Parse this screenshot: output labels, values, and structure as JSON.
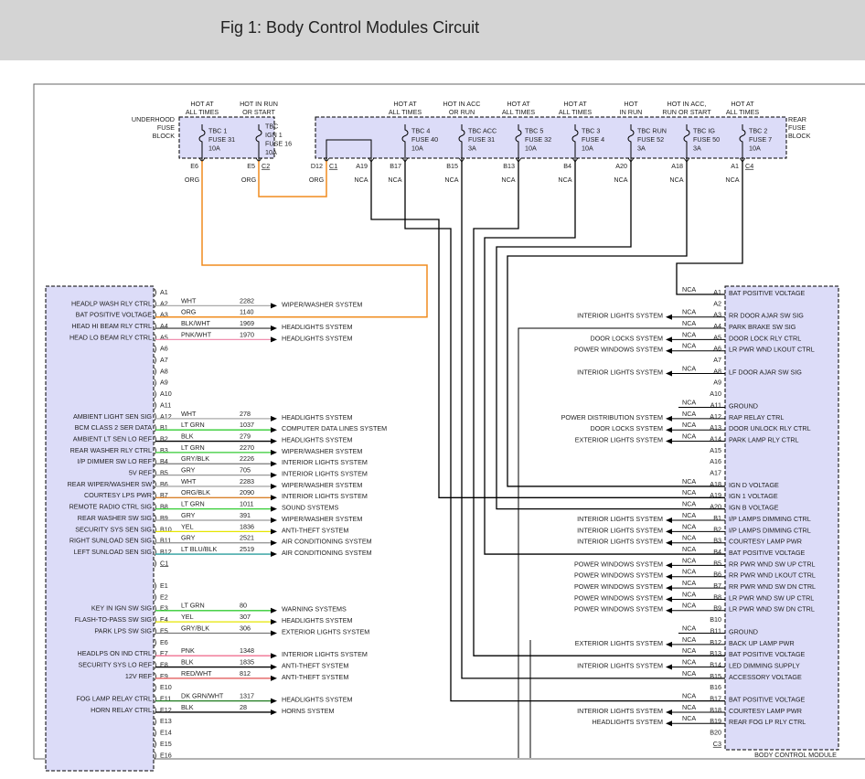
{
  "header": {
    "title": "Fig 1: Body Control Modules Circuit"
  },
  "underhood_fuse_block": {
    "label": [
      "UNDERHOOD",
      "FUSE",
      "BLOCK"
    ],
    "fuses": [
      {
        "heading": [
          "HOT AT",
          "ALL TIMES"
        ],
        "label": [
          "TBC 1",
          "FUSE 31",
          "10A"
        ],
        "pins": [
          "E6"
        ],
        "wire": "ORG"
      },
      {
        "heading": [
          "HOT IN RUN",
          "OR START"
        ],
        "label": [
          "TBC",
          "IGN 1",
          "FUSE 16",
          "10A"
        ],
        "pins": [
          "E5",
          "C2"
        ],
        "wire": "ORG"
      }
    ]
  },
  "rear_fuse_block": {
    "label": [
      "REAR",
      "FUSE",
      "BLOCK"
    ],
    "fuses": [
      {
        "pins": [
          "D12",
          "C1"
        ],
        "wire": "ORG"
      },
      {
        "pins": [
          "A19"
        ],
        "wire": "NCA"
      },
      {
        "heading": [
          "HOT AT",
          "ALL TIMES"
        ],
        "label": [
          "TBC 4",
          "FUSE 40",
          "10A"
        ],
        "pins": [
          "B17"
        ],
        "wire": "NCA"
      },
      {
        "heading": [
          "HOT IN ACC",
          "OR RUN"
        ],
        "label": [
          "TBC ACC",
          "FUSE 31",
          "3A"
        ],
        "pins": [
          "B15"
        ],
        "wire": "NCA"
      },
      {
        "heading": [
          "HOT AT",
          "ALL TIMES"
        ],
        "label": [
          "TBC 5",
          "FUSE 32",
          "10A"
        ],
        "pins": [
          "B13"
        ],
        "wire": "NCA"
      },
      {
        "heading": [
          "HOT AT",
          "ALL TIMES"
        ],
        "label": [
          "TBC 3",
          "FUSE 4",
          "10A"
        ],
        "pins": [
          "B4"
        ],
        "wire": "NCA"
      },
      {
        "heading": [
          "HOT",
          "IN RUN"
        ],
        "label": [
          "TBC RUN",
          "FUSE 52",
          "3A"
        ],
        "pins": [
          "A20"
        ],
        "wire": "NCA"
      },
      {
        "heading": [
          "HOT IN ACC,",
          "RUN OR START"
        ],
        "label": [
          "TBC IG",
          "FUSE 50",
          "3A"
        ],
        "pins": [
          "A18"
        ],
        "wire": "NCA"
      },
      {
        "heading": [
          "HOT AT",
          "ALL TIMES"
        ],
        "label": [
          "TBC 2",
          "FUSE 7",
          "10A"
        ],
        "pins": [
          "A1",
          "C4"
        ],
        "wire": "NCA"
      }
    ]
  },
  "left_module": {
    "rows": [
      {
        "pin": "A1"
      },
      {
        "pin": "A2",
        "function": "HEADLP WASH RLY CTRL",
        "wire": "WHT",
        "circuit": "2282",
        "destination": "WIPER/WASHER SYSTEM",
        "color": "#aaaaaa"
      },
      {
        "pin": "A3",
        "function": "BAT POSITIVE VOLTAGE",
        "wire": "ORG",
        "circuit": "1140",
        "color": "#f08c1e"
      },
      {
        "pin": "A4",
        "function": "HEAD HI BEAM RLY CTRL",
        "wire": "BLK/WHT",
        "circuit": "1969",
        "destination": "HEADLIGHTS SYSTEM",
        "color": "#555555"
      },
      {
        "pin": "A5",
        "function": "HEAD LO BEAM RLY CTRL",
        "wire": "PNK/WHT",
        "circuit": "1970",
        "destination": "HEADLIGHTS SYSTEM",
        "color": "#f090b0"
      },
      {
        "pin": "A6"
      },
      {
        "pin": "A7"
      },
      {
        "pin": "A8"
      },
      {
        "pin": "A9"
      },
      {
        "pin": "A10"
      },
      {
        "pin": "A11"
      },
      {
        "pin": "A12",
        "function": "AMBIENT LIGHT SEN SIG",
        "wire": "WHT",
        "circuit": "278",
        "destination": "HEADLIGHTS SYSTEM",
        "color": "#aaaaaa"
      },
      {
        "pin": "B1",
        "function": "BCM CLASS 2 SER DATA",
        "wire": "LT GRN",
        "circuit": "1037",
        "destination": "COMPUTER DATA LINES SYSTEM",
        "color": "#33cc33"
      },
      {
        "pin": "B2",
        "function": "AMBIENT LT SEN LO REF",
        "wire": "BLK",
        "circuit": "279",
        "destination": "HEADLIGHTS SYSTEM",
        "color": "#000000"
      },
      {
        "pin": "B3",
        "function": "REAR WASHER RLY CTRL",
        "wire": "LT GRN",
        "circuit": "2270",
        "destination": "WIPER/WASHER SYSTEM",
        "color": "#33cc33"
      },
      {
        "pin": "B4",
        "function": "I/P DIMMER SW LO REF",
        "wire": "GRY/BLK",
        "circuit": "2226",
        "destination": "INTERIOR LIGHTS SYSTEM",
        "color": "#777777"
      },
      {
        "pin": "B5",
        "function": "5V REF",
        "wire": "GRY",
        "circuit": "705",
        "destination": "INTERIOR LIGHTS SYSTEM",
        "color": "#999999"
      },
      {
        "pin": "B6",
        "function": "REAR WIPER/WASHER SW",
        "wire": "WHT",
        "circuit": "2283",
        "destination": "WIPER/WASHER SYSTEM",
        "color": "#aaaaaa"
      },
      {
        "pin": "B7",
        "function": "COURTESY LPS PWR",
        "wire": "ORG/BLK",
        "circuit": "2090",
        "destination": "INTERIOR LIGHTS SYSTEM",
        "color": "#d9822b"
      },
      {
        "pin": "B8",
        "function": "REMOTE RADIO CTRL SIG",
        "wire": "LT GRN",
        "circuit": "1011",
        "destination": "SOUND SYSTEMS",
        "color": "#33cc33"
      },
      {
        "pin": "B9",
        "function": "REAR WASHER SW SIG",
        "wire": "GRY",
        "circuit": "391",
        "destination": "WIPER/WASHER SYSTEM",
        "color": "#999999"
      },
      {
        "pin": "B10",
        "function": "SECURITY SYS SEN SIG",
        "wire": "YEL",
        "circuit": "1836",
        "destination": "ANTI-THEFT SYSTEM",
        "color": "#e6e600"
      },
      {
        "pin": "B11",
        "function": "RIGHT SUNLOAD SEN SIG",
        "wire": "GRY",
        "circuit": "2521",
        "destination": "AIR CONDITIONING SYSTEM",
        "color": "#999999"
      },
      {
        "pin": "B12",
        "function": "LEFT SUNLOAD SEN SIG",
        "wire": "LT BLU/BLK",
        "circuit": "2519",
        "destination": "AIR CONDITIONING SYSTEM",
        "color": "#2a9d9d"
      },
      {
        "pin": "C1"
      },
      {
        "pin": "E1"
      },
      {
        "pin": "E2"
      },
      {
        "pin": "E3",
        "function": "KEY IN IGN SW SIG",
        "wire": "LT GRN",
        "circuit": "80",
        "destination": "WARNING SYSTEMS",
        "color": "#33cc33"
      },
      {
        "pin": "E4",
        "function": "FLASH-TO-PASS SW SIG",
        "wire": "YEL",
        "circuit": "307",
        "destination": "HEADLIGHTS SYSTEM",
        "color": "#e6e600"
      },
      {
        "pin": "E5",
        "function": "PARK LPS SW SIG",
        "wire": "GRY/BLK",
        "circuit": "306",
        "destination": "EXTERIOR LIGHTS SYSTEM",
        "color": "#777777"
      },
      {
        "pin": "E6"
      },
      {
        "pin": "E7",
        "function": "HEADLPS ON IND CTRL",
        "wire": "PNK",
        "circuit": "1348",
        "destination": "INTERIOR LIGHTS SYSTEM",
        "color": "#f07090"
      },
      {
        "pin": "E8",
        "function": "SECURITY SYS LO REF",
        "wire": "BLK",
        "circuit": "1835",
        "destination": "ANTI-THEFT SYSTEM",
        "color": "#000000"
      },
      {
        "pin": "E9",
        "function": "12V REF",
        "wire": "RED/WHT",
        "circuit": "812",
        "destination": "ANTI-THEFT SYSTEM",
        "color": "#e05050"
      },
      {
        "pin": "E10"
      },
      {
        "pin": "E11",
        "function": "FOG LAMP RELAY CTRL",
        "wire": "DK GRN/WHT",
        "circuit": "1317",
        "destination": "HEADLIGHTS SYSTEM",
        "color": "#1e7a1e"
      },
      {
        "pin": "E12",
        "function": "HORN RELAY CTRL",
        "wire": "BLK",
        "circuit": "28",
        "destination": "HORNS SYSTEM",
        "color": "#000000"
      },
      {
        "pin": "E13"
      },
      {
        "pin": "E14"
      },
      {
        "pin": "E15"
      },
      {
        "pin": "E16"
      }
    ]
  },
  "right_module": {
    "label": "BODY CONTROL MODULE",
    "rows": [
      {
        "pin": "A1",
        "wire": "NCA",
        "function": "BAT POSITIVE VOLTAGE"
      },
      {
        "pin": "A2"
      },
      {
        "pin": "A3",
        "wire": "NCA",
        "destination": "INTERIOR LIGHTS SYSTEM",
        "function": "RR DOOR AJAR SW SIG"
      },
      {
        "pin": "A4",
        "wire": "NCA",
        "function": "PARK BRAKE SW SIG"
      },
      {
        "pin": "A5",
        "wire": "NCA",
        "destination": "DOOR LOCKS SYSTEM",
        "function": "DOOR LOCK RLY CTRL"
      },
      {
        "pin": "A6",
        "wire": "NCA",
        "destination": "POWER WINDOWS SYSTEM",
        "function": "LR PWR WND LKOUT CTRL"
      },
      {
        "pin": "A7"
      },
      {
        "pin": "A8",
        "wire": "NCA",
        "destination": "INTERIOR LIGHTS SYSTEM",
        "function": "LF DOOR AJAR SW SIG"
      },
      {
        "pin": "A9"
      },
      {
        "pin": "A10"
      },
      {
        "pin": "A11",
        "wire": "NCA",
        "function": "GROUND"
      },
      {
        "pin": "A12",
        "wire": "NCA",
        "destination": "POWER DISTRIBUTION SYSTEM",
        "function": "RAP RELAY CTRL"
      },
      {
        "pin": "A13",
        "wire": "NCA",
        "destination": "DOOR LOCKS SYSTEM",
        "function": "DOOR UNLOCK RLY CTRL"
      },
      {
        "pin": "A14",
        "wire": "NCA",
        "destination": "EXTERIOR LIGHTS SYSTEM",
        "function": "PARK LAMP RLY CTRL"
      },
      {
        "pin": "A15"
      },
      {
        "pin": "A16"
      },
      {
        "pin": "A17"
      },
      {
        "pin": "A18",
        "wire": "NCA",
        "function": "IGN D VOLTAGE"
      },
      {
        "pin": "A19",
        "wire": "NCA",
        "function": "IGN 1 VOLTAGE"
      },
      {
        "pin": "A20",
        "wire": "NCA",
        "function": "IGN B VOLTAGE"
      },
      {
        "pin": "B1",
        "wire": "NCA",
        "destination": "INTERIOR LIGHTS SYSTEM",
        "function": "I/P LAMPS DIMMING CTRL"
      },
      {
        "pin": "B2",
        "wire": "NCA",
        "destination": "INTERIOR LIGHTS SYSTEM",
        "function": "I/P LAMPS DIMMING CTRL"
      },
      {
        "pin": "B3",
        "wire": "NCA",
        "destination": "INTERIOR LIGHTS SYSTEM",
        "function": "COURTESY LAMP PWR"
      },
      {
        "pin": "B4",
        "wire": "NCA",
        "function": "BAT POSITIVE VOLTAGE"
      },
      {
        "pin": "B5",
        "wire": "NCA",
        "destination": "POWER WINDOWS SYSTEM",
        "function": "RR PWR WND SW UP CTRL"
      },
      {
        "pin": "B6",
        "wire": "NCA",
        "destination": "POWER WINDOWS SYSTEM",
        "function": "RR PWR WND LKOUT CTRL"
      },
      {
        "pin": "B7",
        "wire": "NCA",
        "destination": "POWER WINDOWS SYSTEM",
        "function": "RR PWR WND SW DN CTRL"
      },
      {
        "pin": "B8",
        "wire": "NCA",
        "destination": "POWER WINDOWS SYSTEM",
        "function": "LR PWR WND SW UP CTRL"
      },
      {
        "pin": "B9",
        "wire": "NCA",
        "destination": "POWER WINDOWS SYSTEM",
        "function": "LR PWR WND SW DN CTRL"
      },
      {
        "pin": "B10"
      },
      {
        "pin": "B11",
        "wire": "NCA",
        "function": "GROUND"
      },
      {
        "pin": "B12",
        "wire": "NCA",
        "destination": "EXTERIOR LIGHTS SYSTEM",
        "function": "BACK UP LAMP PWR"
      },
      {
        "pin": "B13",
        "wire": "NCA",
        "function": "BAT POSITIVE VOLTAGE"
      },
      {
        "pin": "B14",
        "wire": "NCA",
        "destination": "INTERIOR LIGHTS SYSTEM",
        "function": "LED DIMMING SUPPLY"
      },
      {
        "pin": "B15",
        "wire": "NCA",
        "function": "ACCESSORY VOLTAGE"
      },
      {
        "pin": "B16"
      },
      {
        "pin": "B17",
        "wire": "NCA",
        "function": "BAT POSITIVE VOLTAGE"
      },
      {
        "pin": "B18",
        "wire": "NCA",
        "destination": "INTERIOR LIGHTS SYSTEM",
        "function": "COURTESY LAMP PWR"
      },
      {
        "pin": "B19",
        "wire": "NCA",
        "destination": "HEADLIGHTS SYSTEM",
        "function": "REAR FOG LP RLY CTRL"
      },
      {
        "pin": "B20"
      },
      {
        "pin": "C3"
      }
    ]
  }
}
